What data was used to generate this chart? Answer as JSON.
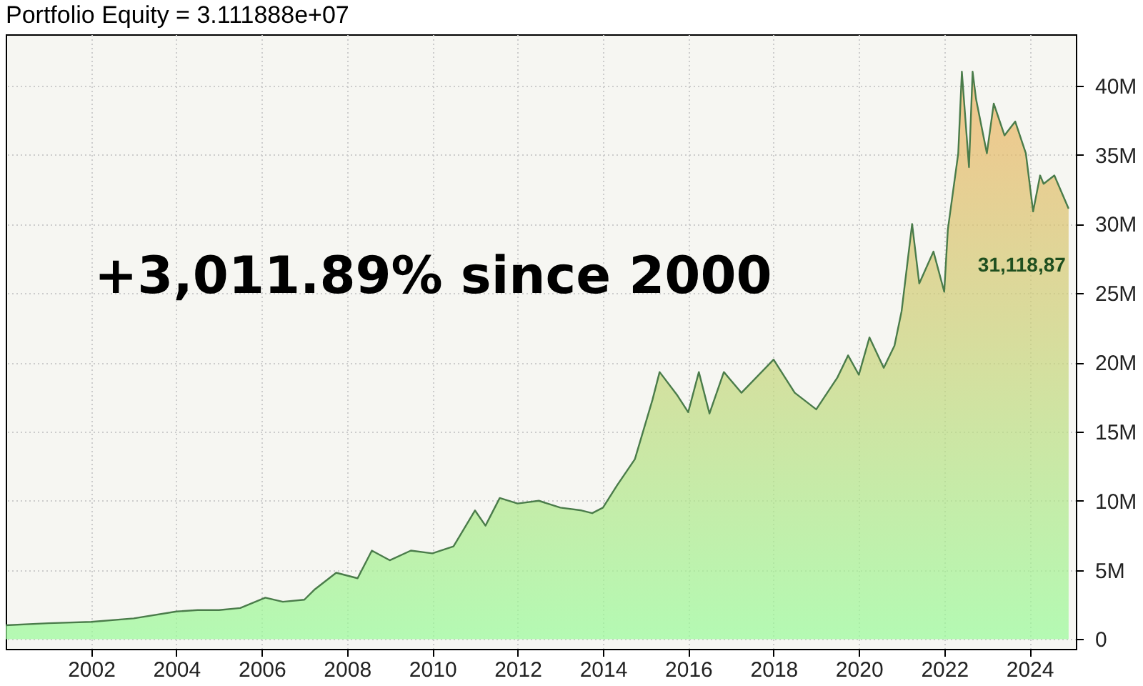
{
  "chart_data": {
    "type": "area",
    "title": "Portfolio Equity = 3.111888e+07",
    "x": [
      "2000-01",
      "2001-01",
      "2002-01",
      "2003-01",
      "2004-01",
      "2004-07",
      "2005-01",
      "2005-07",
      "2006-02",
      "2006-07",
      "2007-01",
      "2007-04",
      "2007-10",
      "2008-04",
      "2008-08",
      "2009-01",
      "2009-07",
      "2010-01",
      "2010-07",
      "2011-01",
      "2011-04",
      "2011-08",
      "2012-01",
      "2012-07",
      "2013-01",
      "2013-07",
      "2013-10",
      "2014-01",
      "2014-05",
      "2014-10",
      "2015-03",
      "2015-05",
      "2015-10",
      "2016-01",
      "2016-04",
      "2016-07",
      "2016-11",
      "2017-04",
      "2018-01",
      "2018-07",
      "2019-01",
      "2019-07",
      "2019-10",
      "2020-01",
      "2020-04",
      "2020-08",
      "2020-11",
      "2021-01",
      "2021-04",
      "2021-06",
      "2021-10",
      "2022-01",
      "2022-02",
      "2022-05",
      "2022-06",
      "2022-08",
      "2022-09",
      "2022-10",
      "2023-01",
      "2023-03",
      "2023-06",
      "2023-09",
      "2023-12",
      "2024-02",
      "2024-04",
      "2024-05",
      "2024-08",
      "2024-12"
    ],
    "series": [
      {
        "color": "#4a7c4a",
        "values": [
          1.0,
          1.15,
          1.25,
          1.5,
          2.0,
          2.1,
          2.1,
          2.25,
          3.0,
          2.7,
          2.85,
          3.6,
          4.8,
          4.4,
          6.4,
          5.7,
          6.4,
          6.2,
          6.7,
          9.3,
          8.2,
          10.2,
          9.8,
          10.0,
          9.5,
          9.3,
          9.1,
          9.5,
          11.1,
          13.0,
          17.3,
          19.3,
          17.6,
          16.4,
          19.3,
          16.3,
          19.3,
          17.8,
          20.2,
          17.8,
          16.6,
          18.9,
          20.5,
          19.1,
          21.8,
          19.6,
          21.2,
          23.7,
          30.0,
          25.7,
          28.0,
          25.1,
          29.6,
          35.1,
          41.0,
          34.1,
          41.0,
          39.0,
          35.1,
          38.7,
          36.4,
          37.4,
          35.1,
          30.9,
          33.5,
          32.9,
          33.5,
          31.1
        ]
      }
    ],
    "xlim": [
      "2000-01-01",
      "2025-02-01"
    ],
    "xticks": [
      "2002",
      "2004",
      "2006",
      "2008",
      "2010",
      "2012",
      "2014",
      "2016",
      "2018",
      "2020",
      "2022",
      "2024"
    ],
    "ylim": [
      -0.7,
      43.7
    ],
    "yticks": [
      {
        "value": 0,
        "label": "0"
      },
      {
        "value": 5,
        "label": "5M"
      },
      {
        "value": 10,
        "label": "10M"
      },
      {
        "value": 15,
        "label": "15M"
      },
      {
        "value": 20,
        "label": "20M"
      },
      {
        "value": 25,
        "label": "25M"
      },
      {
        "value": 30,
        "label": "30M"
      },
      {
        "value": 35,
        "label": "35M"
      },
      {
        "value": 40,
        "label": "40M"
      }
    ],
    "grid": true,
    "annotations": [
      "+3,011.89% since 2000",
      {
        "text": "31,118,87",
        "x": "2024-12",
        "y": 31.1
      }
    ]
  }
}
